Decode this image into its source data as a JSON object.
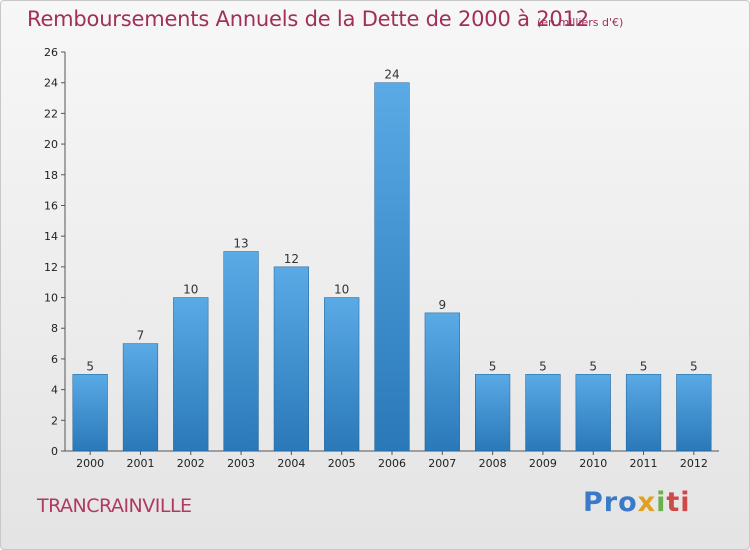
{
  "header": {
    "title": "Remboursements Annuels de la Dette de 2000 à 2012",
    "subtitle": "(en milliers d'€)"
  },
  "footer": {
    "commune": "TRANCRAINVILLE",
    "logo_parts": [
      "Pro",
      "x",
      "i",
      "ti"
    ]
  },
  "colors": {
    "title": "#a0305a",
    "bar_top": "#5aaae6",
    "bar_bottom": "#2a78b8"
  },
  "chart_data": {
    "type": "bar",
    "title": "Remboursements Annuels de la Dette de 2000 à 2012",
    "subtitle": "(en milliers d'€)",
    "categories": [
      "2000",
      "2001",
      "2002",
      "2003",
      "2004",
      "2005",
      "2006",
      "2007",
      "2008",
      "2009",
      "2010",
      "2011",
      "2012"
    ],
    "values": [
      5,
      7,
      10,
      13,
      12,
      10,
      24,
      9,
      5,
      5,
      5,
      5,
      5
    ],
    "data_labels": [
      "5",
      "7",
      "10",
      "13",
      "12",
      "10",
      "24",
      "9",
      "5",
      "5",
      "5",
      "5",
      "5"
    ],
    "ylim": [
      0,
      26
    ],
    "yticks": [
      0,
      2,
      4,
      6,
      8,
      10,
      12,
      14,
      16,
      18,
      20,
      22,
      24,
      26
    ],
    "grid": false,
    "legend": "none"
  }
}
